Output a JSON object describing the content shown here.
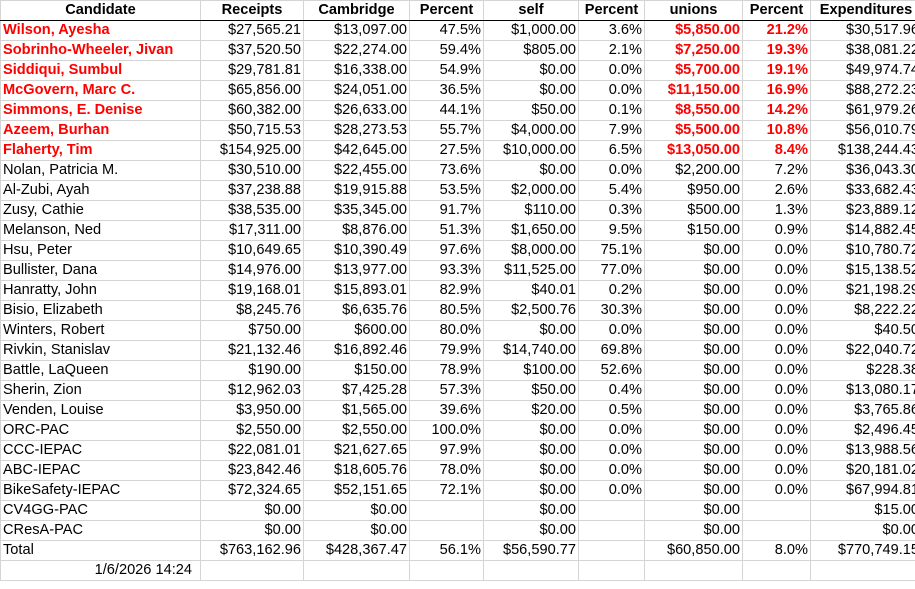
{
  "headers": [
    "Candidate",
    "Receipts",
    "Cambridge",
    "Percent",
    "self",
    "Percent",
    "unions",
    "Percent",
    "Expenditures"
  ],
  "rows": [
    {
      "hl": true,
      "cells": [
        "Wilson, Ayesha",
        "$27,565.21",
        "$13,097.00",
        "47.5%",
        "$1,000.00",
        "3.6%",
        "$5,850.00",
        "21.2%",
        "$30,517.96"
      ]
    },
    {
      "hl": true,
      "cells": [
        "Sobrinho-Wheeler, Jivan",
        "$37,520.50",
        "$22,274.00",
        "59.4%",
        "$805.00",
        "2.1%",
        "$7,250.00",
        "19.3%",
        "$38,081.22"
      ]
    },
    {
      "hl": true,
      "cells": [
        "Siddiqui, Sumbul",
        "$29,781.81",
        "$16,338.00",
        "54.9%",
        "$0.00",
        "0.0%",
        "$5,700.00",
        "19.1%",
        "$49,974.74"
      ]
    },
    {
      "hl": true,
      "cells": [
        "McGovern, Marc C.",
        "$65,856.00",
        "$24,051.00",
        "36.5%",
        "$0.00",
        "0.0%",
        "$11,150.00",
        "16.9%",
        "$88,272.23"
      ]
    },
    {
      "hl": true,
      "cells": [
        "Simmons, E. Denise",
        "$60,382.00",
        "$26,633.00",
        "44.1%",
        "$50.00",
        "0.1%",
        "$8,550.00",
        "14.2%",
        "$61,979.26"
      ]
    },
    {
      "hl": true,
      "cells": [
        "Azeem, Burhan",
        "$50,715.53",
        "$28,273.53",
        "55.7%",
        "$4,000.00",
        "7.9%",
        "$5,500.00",
        "10.8%",
        "$56,010.79"
      ]
    },
    {
      "hl": true,
      "cells": [
        "Flaherty, Tim",
        "$154,925.00",
        "$42,645.00",
        "27.5%",
        "$10,000.00",
        "6.5%",
        "$13,050.00",
        "8.4%",
        "$138,244.43"
      ]
    },
    {
      "hl": false,
      "cells": [
        "Nolan, Patricia M.",
        "$30,510.00",
        "$22,455.00",
        "73.6%",
        "$0.00",
        "0.0%",
        "$2,200.00",
        "7.2%",
        "$36,043.30"
      ]
    },
    {
      "hl": false,
      "cells": [
        "Al-Zubi, Ayah",
        "$37,238.88",
        "$19,915.88",
        "53.5%",
        "$2,000.00",
        "5.4%",
        "$950.00",
        "2.6%",
        "$33,682.43"
      ]
    },
    {
      "hl": false,
      "cells": [
        "Zusy, Cathie",
        "$38,535.00",
        "$35,345.00",
        "91.7%",
        "$110.00",
        "0.3%",
        "$500.00",
        "1.3%",
        "$23,889.12"
      ]
    },
    {
      "hl": false,
      "cells": [
        "Melanson, Ned",
        "$17,311.00",
        "$8,876.00",
        "51.3%",
        "$1,650.00",
        "9.5%",
        "$150.00",
        "0.9%",
        "$14,882.45"
      ]
    },
    {
      "hl": false,
      "cells": [
        "Hsu, Peter",
        "$10,649.65",
        "$10,390.49",
        "97.6%",
        "$8,000.00",
        "75.1%",
        "$0.00",
        "0.0%",
        "$10,780.72"
      ]
    },
    {
      "hl": false,
      "cells": [
        "Bullister, Dana",
        "$14,976.00",
        "$13,977.00",
        "93.3%",
        "$11,525.00",
        "77.0%",
        "$0.00",
        "0.0%",
        "$15,138.52"
      ]
    },
    {
      "hl": false,
      "cells": [
        "Hanratty, John",
        "$19,168.01",
        "$15,893.01",
        "82.9%",
        "$40.01",
        "0.2%",
        "$0.00",
        "0.0%",
        "$21,198.29"
      ]
    },
    {
      "hl": false,
      "cells": [
        "Bisio, Elizabeth",
        "$8,245.76",
        "$6,635.76",
        "80.5%",
        "$2,500.76",
        "30.3%",
        "$0.00",
        "0.0%",
        "$8,222.22"
      ]
    },
    {
      "hl": false,
      "cells": [
        "Winters, Robert",
        "$750.00",
        "$600.00",
        "80.0%",
        "$0.00",
        "0.0%",
        "$0.00",
        "0.0%",
        "$40.50"
      ]
    },
    {
      "hl": false,
      "cells": [
        "Rivkin, Stanislav",
        "$21,132.46",
        "$16,892.46",
        "79.9%",
        "$14,740.00",
        "69.8%",
        "$0.00",
        "0.0%",
        "$22,040.72"
      ]
    },
    {
      "hl": false,
      "cells": [
        "Battle, LaQueen",
        "$190.00",
        "$150.00",
        "78.9%",
        "$100.00",
        "52.6%",
        "$0.00",
        "0.0%",
        "$228.38"
      ]
    },
    {
      "hl": false,
      "cells": [
        "Sherin, Zion",
        "$12,962.03",
        "$7,425.28",
        "57.3%",
        "$50.00",
        "0.4%",
        "$0.00",
        "0.0%",
        "$13,080.17"
      ]
    },
    {
      "hl": false,
      "cells": [
        "Venden, Louise",
        "$3,950.00",
        "$1,565.00",
        "39.6%",
        "$20.00",
        "0.5%",
        "$0.00",
        "0.0%",
        "$3,765.86"
      ]
    }
  ],
  "pac_rows": [
    {
      "cells": [
        "ORC-PAC",
        "$2,550.00",
        "$2,550.00",
        "100.0%",
        "$0.00",
        "0.0%",
        "$0.00",
        "0.0%",
        "$2,496.45"
      ]
    },
    {
      "cells": [
        "CCC-IEPAC",
        "$22,081.01",
        "$21,627.65",
        "97.9%",
        "$0.00",
        "0.0%",
        "$0.00",
        "0.0%",
        "$13,988.56"
      ]
    },
    {
      "cells": [
        "ABC-IEPAC",
        "$23,842.46",
        "$18,605.76",
        "78.0%",
        "$0.00",
        "0.0%",
        "$0.00",
        "0.0%",
        "$20,181.02"
      ]
    },
    {
      "cells": [
        "BikeSafety-IEPAC",
        "$72,324.65",
        "$52,151.65",
        "72.1%",
        "$0.00",
        "0.0%",
        "$0.00",
        "0.0%",
        "$67,994.81"
      ]
    },
    {
      "cells": [
        "CV4GG-PAC",
        "$0.00",
        "$0.00",
        "",
        "$0.00",
        "",
        "$0.00",
        "",
        "$15.00"
      ]
    },
    {
      "cells": [
        "CResA-PAC",
        "$0.00",
        "$0.00",
        "",
        "$0.00",
        "",
        "$0.00",
        "",
        "$0.00"
      ]
    }
  ],
  "total": {
    "cells": [
      "Total",
      "$763,162.96",
      "$428,367.47",
      "56.1%",
      "$56,590.77",
      "",
      "$60,850.00",
      "8.0%",
      "$770,749.15"
    ]
  },
  "timestamp": "1/6/2026 14:24",
  "colors": {
    "highlight": "#ff0000",
    "gridline": "#d4d4d4",
    "border": "#000000"
  }
}
